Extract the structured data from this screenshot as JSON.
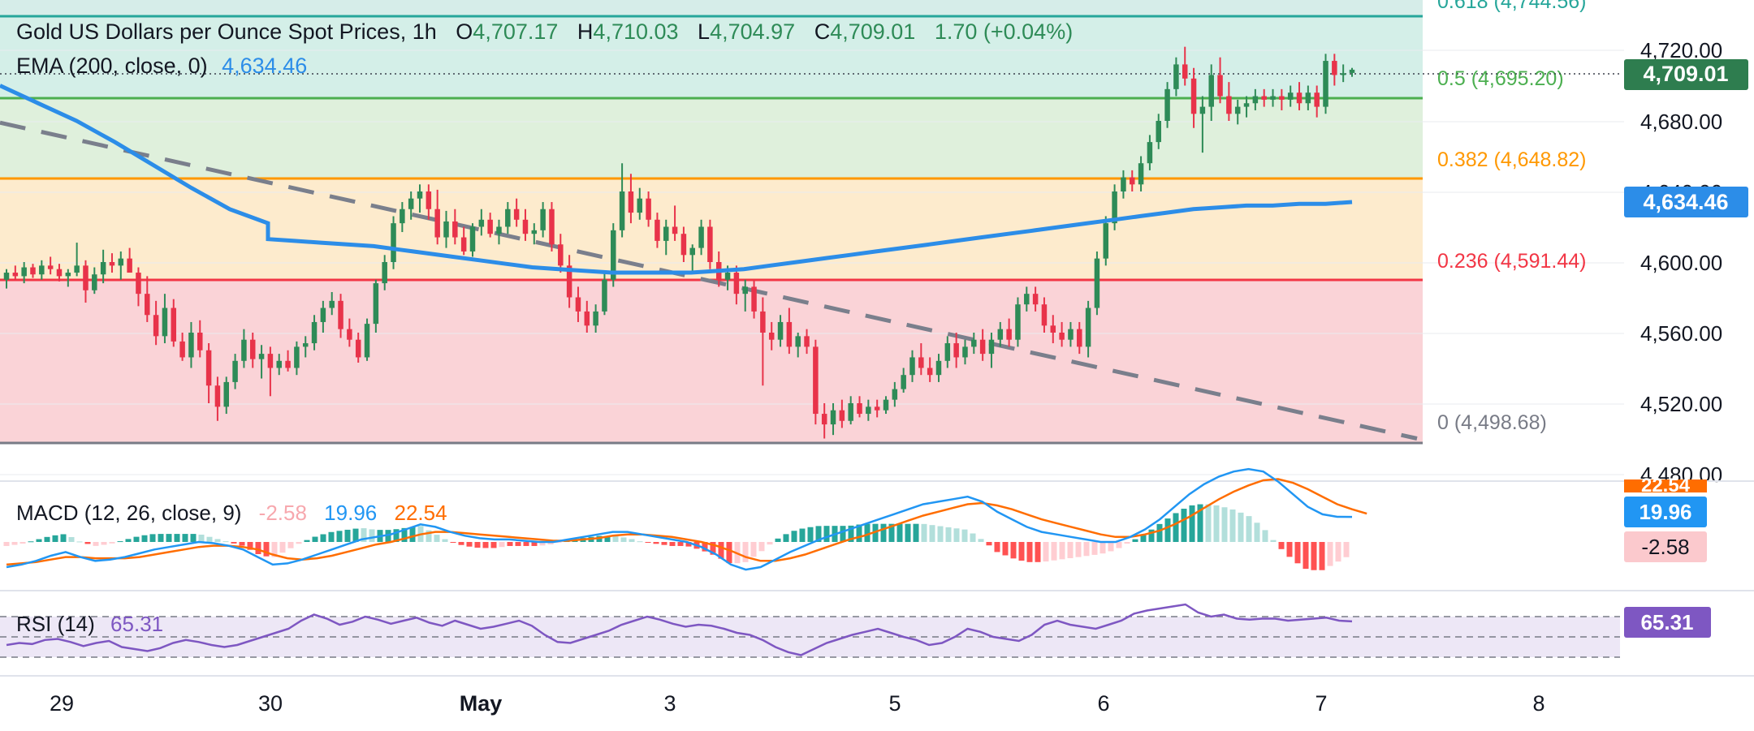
{
  "header": {
    "title": "Gold US Dollars per Ounce Spot Prices",
    "interval": "1h",
    "o_label": "O",
    "o_value": "4,707.17",
    "h_label": "H",
    "h_value": "4,710.03",
    "l_label": "L",
    "l_value": "4,704.97",
    "c_label": "C",
    "c_value": "4,709.01",
    "change": "1.70 (+0.04%)"
  },
  "ema_legend": {
    "label": "EMA (200, close, 0)",
    "value": "4,634.46"
  },
  "macd_legend": {
    "label": "MACD (12, 26, close, 9)",
    "hist": "-2.58",
    "macd": "19.96",
    "signal": "22.54"
  },
  "rsi_legend": {
    "label": "RSI (14)",
    "value": "65.31"
  },
  "badges": {
    "price": "4,709.01",
    "ema": "4,634.46",
    "macd_signal": "22.54",
    "macd": "19.96",
    "macd_hist": "-2.58",
    "rsi": "65.31"
  },
  "colors": {
    "up": "#2e8b57",
    "down": "#e8334a",
    "ema": "#2c8de8",
    "trend": "#7a7f8c",
    "fib_1": "#2bb5a0",
    "fib_0618": "#26a69a",
    "fib_05": "#4caf50",
    "fib_0382": "#ff9800",
    "fib_0236": "#f23645",
    "fib_0": "#787b86",
    "macd": "#2196f3",
    "signal": "#ff6d00",
    "rsi": "#7e57c2"
  },
  "chart_data": {
    "type": "candlestick",
    "title": "Gold US Dollars per Ounce Spot Prices",
    "interval": "1h",
    "ylim": [
      4480,
      4740
    ],
    "price_ticks": [
      "4,480.00",
      "4,520.00",
      "4,560.00",
      "4,600.00",
      "4,640.00",
      "4,680.00",
      "4,720.00"
    ],
    "x_ticks": [
      "29",
      "30",
      "May",
      "3",
      "5",
      "6",
      "7",
      "8"
    ],
    "fib_levels": [
      {
        "ratio": 1,
        "label": "",
        "price": 4743
      },
      {
        "ratio": 0.618,
        "label": "0.618 (4,744.56)",
        "price": 4744.56
      },
      {
        "ratio": 0.5,
        "label": "0.5 (4,695.20)",
        "price": 4695.2
      },
      {
        "ratio": 0.382,
        "label": "0.382 (4,648.82)",
        "price": 4648.82
      },
      {
        "ratio": 0.236,
        "label": "0.236 (4,591.44)",
        "price": 4591.44
      },
      {
        "ratio": 0,
        "label": "0 (4,498.68)",
        "price": 4498.68
      }
    ],
    "ohlc": [
      [
        4590,
        4596,
        4585,
        4594
      ],
      [
        4594,
        4598,
        4590,
        4592
      ],
      [
        4592,
        4600,
        4588,
        4597
      ],
      [
        4597,
        4599,
        4591,
        4593
      ],
      [
        4593,
        4601,
        4590,
        4598
      ],
      [
        4598,
        4603,
        4593,
        4596
      ],
      [
        4596,
        4599,
        4589,
        4592
      ],
      [
        4592,
        4596,
        4586,
        4594
      ],
      [
        4594,
        4611,
        4592,
        4598
      ],
      [
        4598,
        4601,
        4577,
        4584
      ],
      [
        4584,
        4597,
        4582,
        4593
      ],
      [
        4593,
        4607,
        4588,
        4600
      ],
      [
        4600,
        4605,
        4594,
        4598
      ],
      [
        4598,
        4606,
        4590,
        4602
      ],
      [
        4602,
        4608,
        4596,
        4594
      ],
      [
        4594,
        4597,
        4575,
        4582
      ],
      [
        4582,
        4592,
        4566,
        4570
      ],
      [
        4570,
        4578,
        4553,
        4558
      ],
      [
        4558,
        4582,
        4554,
        4574
      ],
      [
        4574,
        4579,
        4552,
        4555
      ],
      [
        4555,
        4560,
        4544,
        4546
      ],
      [
        4546,
        4566,
        4540,
        4560
      ],
      [
        4560,
        4567,
        4546,
        4550
      ],
      [
        4550,
        4554,
        4520,
        4530
      ],
      [
        4530,
        4535,
        4510,
        4518
      ],
      [
        4518,
        4535,
        4514,
        4532
      ],
      [
        4532,
        4548,
        4528,
        4544
      ],
      [
        4544,
        4562,
        4540,
        4556
      ],
      [
        4556,
        4560,
        4540,
        4545
      ],
      [
        4545,
        4553,
        4534,
        4548
      ],
      [
        4548,
        4552,
        4524,
        4540
      ],
      [
        4540,
        4548,
        4536,
        4544
      ],
      [
        4544,
        4550,
        4538,
        4540
      ],
      [
        4540,
        4555,
        4536,
        4552
      ],
      [
        4552,
        4558,
        4546,
        4554
      ],
      [
        4554,
        4570,
        4550,
        4566
      ],
      [
        4566,
        4578,
        4560,
        4574
      ],
      [
        4574,
        4583,
        4570,
        4578
      ],
      [
        4578,
        4582,
        4557,
        4562
      ],
      [
        4562,
        4568,
        4552,
        4556
      ],
      [
        4556,
        4560,
        4543,
        4546
      ],
      [
        4546,
        4568,
        4544,
        4565
      ],
      [
        4565,
        4590,
        4560,
        4588
      ],
      [
        4588,
        4604,
        4584,
        4600
      ],
      [
        4600,
        4626,
        4596,
        4622
      ],
      [
        4622,
        4634,
        4617,
        4630
      ],
      [
        4630,
        4640,
        4624,
        4636
      ],
      [
        4636,
        4644,
        4628,
        4640
      ],
      [
        4640,
        4644,
        4624,
        4630
      ],
      [
        4630,
        4641,
        4610,
        4614
      ],
      [
        4614,
        4629,
        4608,
        4623
      ],
      [
        4623,
        4630,
        4610,
        4614
      ],
      [
        4614,
        4620,
        4604,
        4606
      ],
      [
        4606,
        4622,
        4603,
        4620
      ],
      [
        4620,
        4630,
        4615,
        4624
      ],
      [
        4624,
        4628,
        4614,
        4616
      ],
      [
        4616,
        4624,
        4610,
        4620
      ],
      [
        4620,
        4634,
        4616,
        4630
      ],
      [
        4630,
        4636,
        4620,
        4624
      ],
      [
        4624,
        4630,
        4612,
        4616
      ],
      [
        4616,
        4622,
        4610,
        4618
      ],
      [
        4618,
        4634,
        4614,
        4630
      ],
      [
        4630,
        4634,
        4606,
        4610
      ],
      [
        4610,
        4616,
        4594,
        4598
      ],
      [
        4598,
        4604,
        4574,
        4580
      ],
      [
        4580,
        4586,
        4566,
        4572
      ],
      [
        4572,
        4578,
        4560,
        4564
      ],
      [
        4564,
        4576,
        4560,
        4572
      ],
      [
        4572,
        4594,
        4570,
        4590
      ],
      [
        4590,
        4622,
        4586,
        4618
      ],
      [
        4618,
        4656,
        4614,
        4640
      ],
      [
        4640,
        4650,
        4622,
        4628
      ],
      [
        4628,
        4642,
        4624,
        4636
      ],
      [
        4636,
        4640,
        4620,
        4624
      ],
      [
        4624,
        4628,
        4608,
        4612
      ],
      [
        4612,
        4624,
        4604,
        4620
      ],
      [
        4620,
        4632,
        4612,
        4616
      ],
      [
        4616,
        4620,
        4600,
        4604
      ],
      [
        4604,
        4610,
        4594,
        4608
      ],
      [
        4608,
        4624,
        4604,
        4620
      ],
      [
        4620,
        4624,
        4596,
        4600
      ],
      [
        4600,
        4606,
        4586,
        4590
      ],
      [
        4590,
        4598,
        4584,
        4594
      ],
      [
        4594,
        4598,
        4576,
        4582
      ],
      [
        4582,
        4590,
        4572,
        4586
      ],
      [
        4586,
        4590,
        4568,
        4572
      ],
      [
        4572,
        4580,
        4530,
        4560
      ],
      [
        4560,
        4566,
        4550,
        4556
      ],
      [
        4556,
        4570,
        4552,
        4566
      ],
      [
        4566,
        4574,
        4548,
        4552
      ],
      [
        4552,
        4560,
        4546,
        4558
      ],
      [
        4558,
        4562,
        4548,
        4552
      ],
      [
        4552,
        4556,
        4508,
        4514
      ],
      [
        4514,
        4520,
        4500,
        4508
      ],
      [
        4508,
        4520,
        4502,
        4516
      ],
      [
        4516,
        4522,
        4506,
        4510
      ],
      [
        4510,
        4524,
        4508,
        4520
      ],
      [
        4520,
        4524,
        4512,
        4514
      ],
      [
        4514,
        4522,
        4510,
        4518
      ],
      [
        4518,
        4522,
        4512,
        4516
      ],
      [
        4516,
        4524,
        4514,
        4522
      ],
      [
        4522,
        4532,
        4518,
        4528
      ],
      [
        4528,
        4540,
        4526,
        4536
      ],
      [
        4536,
        4550,
        4532,
        4546
      ],
      [
        4546,
        4554,
        4536,
        4540
      ],
      [
        4540,
        4546,
        4532,
        4536
      ],
      [
        4536,
        4548,
        4532,
        4544
      ],
      [
        4544,
        4558,
        4540,
        4554
      ],
      [
        4554,
        4560,
        4540,
        4546
      ],
      [
        4546,
        4556,
        4542,
        4552
      ],
      [
        4552,
        4560,
        4548,
        4556
      ],
      [
        4556,
        4562,
        4544,
        4548
      ],
      [
        4548,
        4560,
        4540,
        4556
      ],
      [
        4556,
        4566,
        4552,
        4562
      ],
      [
        4562,
        4568,
        4552,
        4556
      ],
      [
        4556,
        4580,
        4552,
        4576
      ],
      [
        4576,
        4586,
        4572,
        4582
      ],
      [
        4582,
        4586,
        4572,
        4576
      ],
      [
        4576,
        4580,
        4560,
        4564
      ],
      [
        4564,
        4570,
        4554,
        4560
      ],
      [
        4560,
        4566,
        4552,
        4556
      ],
      [
        4556,
        4566,
        4552,
        4562
      ],
      [
        4562,
        4566,
        4548,
        4552
      ],
      [
        4552,
        4578,
        4546,
        4574
      ],
      [
        4574,
        4606,
        4570,
        4602
      ],
      [
        4602,
        4626,
        4598,
        4622
      ],
      [
        4622,
        4644,
        4618,
        4640
      ],
      [
        4640,
        4652,
        4636,
        4648
      ],
      [
        4648,
        4652,
        4640,
        4644
      ],
      [
        4644,
        4660,
        4640,
        4656
      ],
      [
        4656,
        4672,
        4652,
        4668
      ],
      [
        4668,
        4684,
        4664,
        4680
      ],
      [
        4680,
        4702,
        4676,
        4698
      ],
      [
        4698,
        4716,
        4694,
        4712
      ],
      [
        4712,
        4722,
        4700,
        4704
      ],
      [
        4704,
        4710,
        4676,
        4684
      ],
      [
        4684,
        4694,
        4662,
        4688
      ],
      [
        4688,
        4712,
        4680,
        4706
      ],
      [
        4706,
        4716,
        4690,
        4694
      ],
      [
        4694,
        4702,
        4680,
        4684
      ],
      [
        4684,
        4692,
        4678,
        4688
      ],
      [
        4688,
        4694,
        4682,
        4690
      ],
      [
        4690,
        4698,
        4686,
        4694
      ],
      [
        4694,
        4698,
        4688,
        4692
      ],
      [
        4692,
        4698,
        4688,
        4694
      ],
      [
        4694,
        4698,
        4686,
        4692
      ],
      [
        4692,
        4700,
        4688,
        4696
      ],
      [
        4696,
        4702,
        4686,
        4690
      ],
      [
        4690,
        4700,
        4686,
        4696
      ],
      [
        4696,
        4700,
        4682,
        4688
      ],
      [
        4688,
        4718,
        4684,
        4714
      ],
      [
        4714,
        4718,
        4700,
        4706
      ],
      [
        4706,
        4712,
        4702,
        4707
      ],
      [
        4707.17,
        4710.03,
        4704.97,
        4709.01
      ]
    ],
    "ema_200": [
      4613,
      4612,
      4611,
      4610,
      4609,
      4607,
      4605,
      4603,
      4601,
      4599,
      4597,
      4596,
      4595,
      4594,
      4594,
      4594,
      4594,
      4595,
      4596,
      4598,
      4600,
      4602,
      4604,
      4606,
      4608,
      4610,
      4612,
      4614,
      4616,
      4618,
      4620,
      4622,
      4624,
      4626,
      4628,
      4630,
      4631,
      4632,
      4632,
      4633,
      4633,
      4634
    ],
    "trendline": {
      "x": [
        0,
        1745
      ],
      "y": [
        4679,
        4500
      ]
    },
    "macd": {
      "label": "MACD (12, 26, close, 9)",
      "macd": [
        -20,
        -18,
        -15,
        -11,
        -8,
        -12,
        -15,
        -14,
        -12,
        -9,
        -6,
        -4,
        -2,
        0,
        -1,
        -3,
        -6,
        -12,
        -18,
        -17,
        -14,
        -10,
        -6,
        -2,
        2,
        4,
        6,
        10,
        14,
        12,
        8,
        5,
        3,
        2,
        2,
        1,
        0,
        0,
        2,
        4,
        6,
        8,
        8,
        6,
        4,
        2,
        0,
        -4,
        -10,
        -18,
        -22,
        -20,
        -14,
        -8,
        -3,
        2,
        6,
        10,
        14,
        18,
        22,
        26,
        30,
        32,
        34,
        36,
        32,
        24,
        18,
        12,
        8,
        6,
        4,
        2,
        0,
        0,
        4,
        10,
        18,
        28,
        38,
        46,
        52,
        56,
        58,
        56,
        48,
        38,
        28,
        22,
        20,
        19.96
      ],
      "signal": [
        -18,
        -17,
        -16,
        -14,
        -12,
        -12,
        -13,
        -13,
        -13,
        -12,
        -10,
        -8,
        -6,
        -4,
        -3,
        -3,
        -4,
        -6,
        -10,
        -13,
        -14,
        -13,
        -11,
        -8,
        -5,
        -2,
        0,
        3,
        6,
        8,
        8,
        7,
        6,
        5,
        4,
        3,
        2,
        1,
        1,
        2,
        3,
        5,
        6,
        6,
        5,
        4,
        2,
        0,
        -3,
        -7,
        -12,
        -15,
        -15,
        -13,
        -10,
        -6,
        -2,
        2,
        5,
        9,
        13,
        17,
        21,
        24,
        27,
        30,
        31,
        29,
        26,
        22,
        18,
        15,
        12,
        9,
        6,
        4,
        4,
        6,
        9,
        14,
        20,
        27,
        34,
        40,
        45,
        49,
        50,
        47,
        42,
        36,
        30,
        26,
        22.54
      ],
      "hist_last": -2.58
    },
    "rsi": {
      "label": "RSI (14)",
      "values": [
        42,
        44,
        43,
        47,
        48,
        45,
        41,
        44,
        46,
        40,
        38,
        36,
        39,
        44,
        47,
        45,
        42,
        40,
        42,
        46,
        50,
        54,
        58,
        66,
        72,
        68,
        62,
        65,
        70,
        67,
        63,
        66,
        69,
        64,
        61,
        66,
        62,
        58,
        60,
        63,
        66,
        61,
        52,
        45,
        44,
        48,
        52,
        56,
        62,
        66,
        70,
        67,
        63,
        60,
        62,
        61,
        58,
        54,
        52,
        47,
        40,
        35,
        32,
        38,
        44,
        48,
        52,
        55,
        58,
        54,
        50,
        47,
        42,
        44,
        50,
        58,
        55,
        50,
        48,
        46,
        52,
        62,
        66,
        62,
        60,
        58,
        62,
        66,
        73,
        76,
        78,
        80,
        82,
        74,
        70,
        72,
        68,
        67,
        68,
        68,
        66,
        67,
        68,
        69,
        66,
        65.31
      ],
      "upper": 70,
      "middle": 50,
      "lower": 30
    }
  }
}
